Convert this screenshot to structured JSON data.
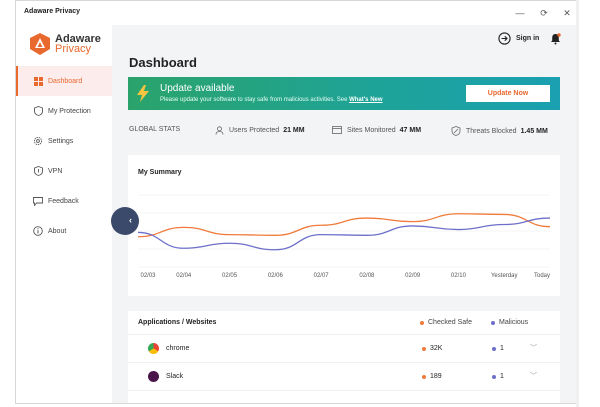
{
  "window": {
    "title": "Adaware Privacy"
  },
  "logo": {
    "line1": "Adaware",
    "line2": "Privacy"
  },
  "sidebar": {
    "items": [
      {
        "label": "Dashboard",
        "icon": "dashboard-icon",
        "active": true
      },
      {
        "label": "My Protection",
        "icon": "shield-icon",
        "active": false
      },
      {
        "label": "Settings",
        "icon": "gear-icon",
        "active": false
      },
      {
        "label": "VPN",
        "icon": "vpn-shield-icon",
        "active": false
      },
      {
        "label": "Feedback",
        "icon": "feedback-icon",
        "active": false
      },
      {
        "label": "About",
        "icon": "info-icon",
        "active": false
      }
    ]
  },
  "header": {
    "title": "Dashboard",
    "signin_label": "Sign in"
  },
  "banner": {
    "title": "Update available",
    "subtitle": "Please update your software to stay safe from malicious activities. See ",
    "link": "What's New",
    "button": "Update Now"
  },
  "stats": {
    "label": "GLOBAL STATS",
    "items": [
      {
        "label": "Users Protected",
        "value": "21 MM"
      },
      {
        "label": "Sites Monitored",
        "value": "47 MM"
      },
      {
        "label": "Threats Blocked",
        "value": "1.45 MM"
      }
    ]
  },
  "summary": {
    "title": "My Summary"
  },
  "chart_data": {
    "type": "line",
    "x": [
      "02/03",
      "02/04",
      "02/05",
      "02/06",
      "02/07",
      "02/08",
      "02/09",
      "02/10",
      "Yesterday",
      "Today"
    ],
    "series": [
      {
        "name": "Checked Safe",
        "color": "#f07a3a",
        "values": [
          0.42,
          0.55,
          0.45,
          0.44,
          0.58,
          0.68,
          0.63,
          0.74,
          0.73,
          0.56
        ]
      },
      {
        "name": "Malicious",
        "color": "#6d6fc9",
        "values": [
          0.48,
          0.26,
          0.33,
          0.24,
          0.45,
          0.44,
          0.57,
          0.52,
          0.59,
          0.68
        ]
      }
    ],
    "grid": true
  },
  "apps": {
    "header": "Applications / Websites",
    "legend_safe": "Checked Safe",
    "legend_malicious": "Malicious",
    "rows": [
      {
        "name": "chrome",
        "safe": "32K",
        "malicious": "1"
      },
      {
        "name": "Slack",
        "safe": "189",
        "malicious": "1"
      }
    ]
  },
  "colors": {
    "accent": "#e8682e",
    "banner": "#1ea39a",
    "safe": "#f07a3a",
    "malicious": "#6d6fc9",
    "collapse": "#3b4a6b"
  }
}
